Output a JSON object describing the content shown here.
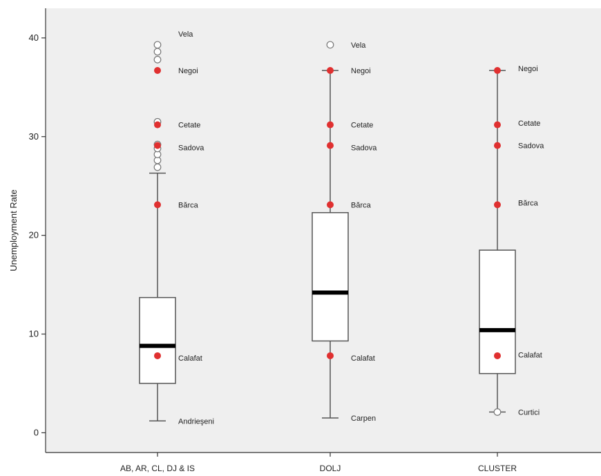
{
  "chart_data": {
    "type": "box",
    "ylabel": "Unemployment Rate",
    "ylim": [
      -2,
      43
    ],
    "yticks": [
      0,
      10,
      20,
      30,
      40
    ],
    "categories": [
      "AB, AR, CL, DJ & IS",
      "DOLJ",
      "CLUSTER"
    ],
    "colors": {
      "background": "#efefef",
      "box_fill": "#ffffff",
      "median": "#000000",
      "highlight": "#e03030",
      "outlier_fill": "#ffffff",
      "line": "#555555"
    },
    "boxes": [
      {
        "category": "AB, AR, CL, DJ & IS",
        "whisker_low": 1.2,
        "q1": 5.0,
        "median": 8.8,
        "q3": 13.7,
        "whisker_high": 26.3,
        "outliers": [
          26.9,
          27.6,
          28.2,
          28.8,
          29.2,
          31.5,
          37.8,
          38.6,
          39.3
        ],
        "highlighted": [
          {
            "name": "Negoi",
            "value": 36.7
          },
          {
            "name": "Cetate",
            "value": 31.2
          },
          {
            "name": "Sadova",
            "value": 29.1
          },
          {
            "name": "Bărca",
            "value": 23.1
          },
          {
            "name": "Calafat",
            "value": 7.8
          }
        ],
        "labels": [
          {
            "text": "Vela",
            "value": 40.4
          },
          {
            "text": "Negoi",
            "value": 36.7
          },
          {
            "text": "Cetate",
            "value": 31.2
          },
          {
            "text": "Sadova",
            "value": 28.9
          },
          {
            "text": "Bărca",
            "value": 23.1
          },
          {
            "text": "Calafat",
            "value": 7.6
          },
          {
            "text": "Andrieşeni",
            "value": 1.2
          }
        ]
      },
      {
        "category": "DOLJ",
        "whisker_low": 1.5,
        "q1": 9.3,
        "median": 14.2,
        "q3": 22.3,
        "whisker_high": 36.7,
        "outliers": [
          39.3
        ],
        "highlighted": [
          {
            "name": "Negoi",
            "value": 36.7
          },
          {
            "name": "Cetate",
            "value": 31.2
          },
          {
            "name": "Sadova",
            "value": 29.1
          },
          {
            "name": "Bărca",
            "value": 23.1
          },
          {
            "name": "Calafat",
            "value": 7.8
          }
        ],
        "labels": [
          {
            "text": "Vela",
            "value": 39.3
          },
          {
            "text": "Negoi",
            "value": 36.7
          },
          {
            "text": "Cetate",
            "value": 31.2
          },
          {
            "text": "Sadova",
            "value": 28.9
          },
          {
            "text": "Bărca",
            "value": 23.1
          },
          {
            "text": "Calafat",
            "value": 7.6
          },
          {
            "text": "Carpen",
            "value": 1.5
          }
        ]
      },
      {
        "category": "CLUSTER",
        "whisker_low": 2.1,
        "q1": 6.0,
        "median": 10.4,
        "q3": 18.5,
        "whisker_high": 36.7,
        "outliers": [
          2.1
        ],
        "highlighted": [
          {
            "name": "Negoi",
            "value": 36.7
          },
          {
            "name": "Cetate",
            "value": 31.2
          },
          {
            "name": "Sadova",
            "value": 29.1
          },
          {
            "name": "Bărca",
            "value": 23.1
          },
          {
            "name": "Calafat",
            "value": 7.8
          }
        ],
        "labels": [
          {
            "text": "Negoi",
            "value": 36.9
          },
          {
            "text": "Cetate",
            "value": 31.4
          },
          {
            "text": "Sadova",
            "value": 29.1
          },
          {
            "text": "Bărca",
            "value": 23.3
          },
          {
            "text": "Calafat",
            "value": 7.9
          },
          {
            "text": "Curtici",
            "value": 2.1
          }
        ]
      }
    ]
  }
}
